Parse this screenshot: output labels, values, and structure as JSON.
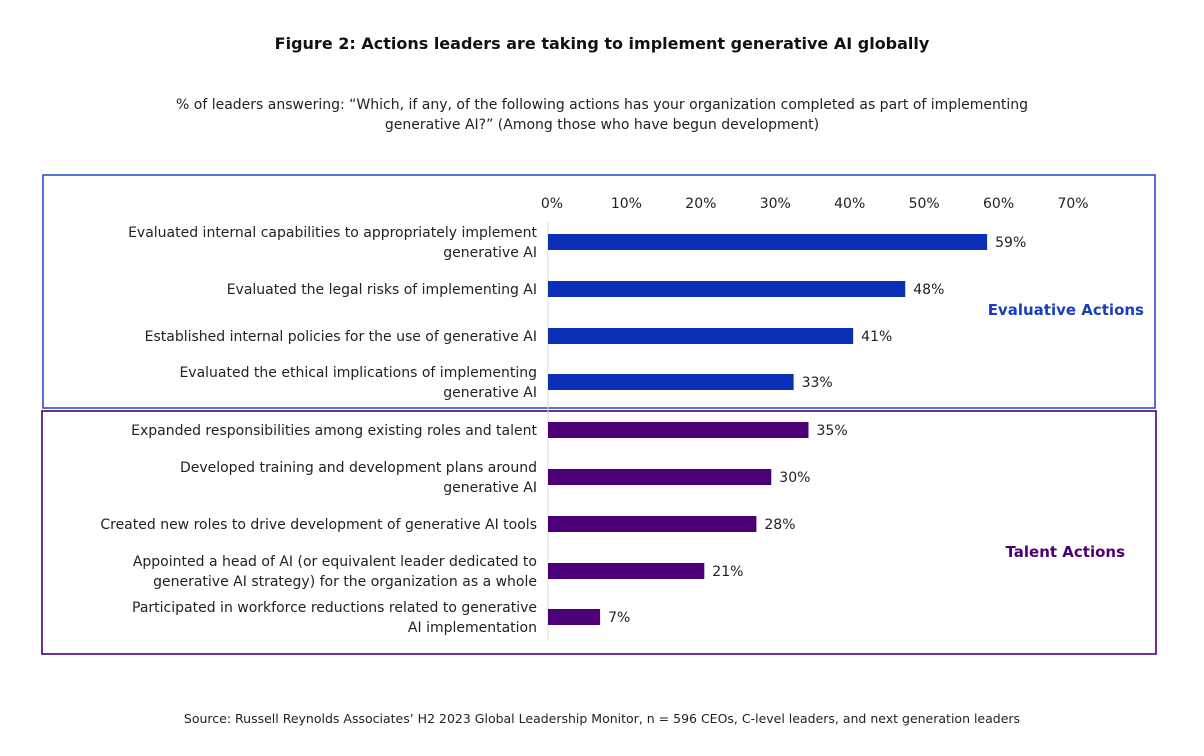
{
  "chart_data": {
    "type": "bar",
    "orientation": "horizontal",
    "title": "Figure 2: Actions leaders are taking to implement generative AI globally",
    "subtitle": "% of leaders answering: “Which, if any, of the following actions has your organization completed as part of implementing generative AI?” (Among those who have begun development)",
    "source": "Source: Russell Reynolds Associates’ H2 2023 Global Leadership Monitor, n = 596 CEOs, C-level leaders, and next generation leaders",
    "xlim": [
      0,
      70
    ],
    "xticks": [
      "0%",
      "10%",
      "20%",
      "30%",
      "40%",
      "50%",
      "60%",
      "70%"
    ],
    "xtick_values": [
      0,
      10,
      20,
      30,
      40,
      50,
      60,
      70
    ],
    "axis_position": "top",
    "grid": false,
    "groups": [
      {
        "name": "Evaluative Actions",
        "color": "#0a2fb4",
        "categories": [
          [
            "Evaluated internal capabilities to appropriately implement",
            "generative AI"
          ],
          [
            "Evaluated the legal risks of implementing AI"
          ],
          [
            "Established internal policies for the use of generative AI"
          ],
          [
            "Evaluated the ethical implications of implementing",
            "generative AI"
          ]
        ],
        "values": [
          59,
          48,
          41,
          33
        ],
        "labels": [
          "59%",
          "48%",
          "41%",
          "33%"
        ]
      },
      {
        "name": "Talent Actions",
        "color": "#4b0078",
        "categories": [
          [
            "Expanded responsibilities among existing roles and talent"
          ],
          [
            "Developed training and development plans around",
            "generative AI"
          ],
          [
            "Created new roles to drive development of generative AI tools"
          ],
          [
            "Appointed a head of AI (or equivalent leader dedicated to",
            "generative AI strategy) for the organization as a whole"
          ],
          [
            "Participated in workforce reductions related to generative",
            "AI implementation"
          ]
        ],
        "values": [
          35,
          30,
          28,
          21,
          7
        ],
        "labels": [
          "35%",
          "30%",
          "28%",
          "21%",
          "7%"
        ]
      }
    ]
  }
}
